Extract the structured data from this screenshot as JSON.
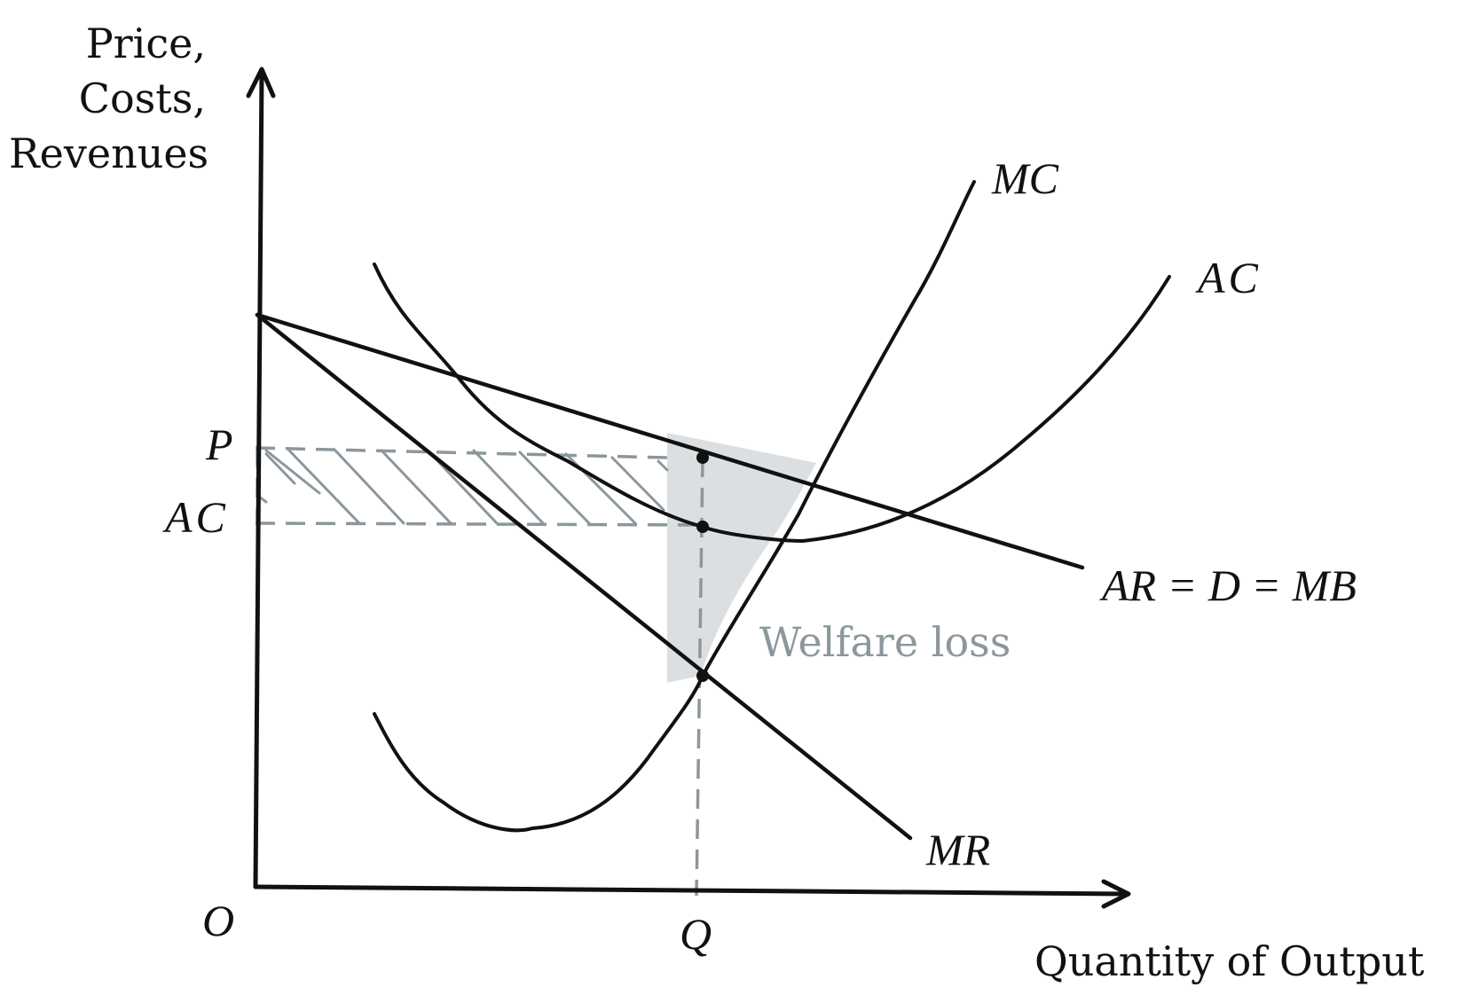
{
  "axes": {
    "y_title_lines": [
      "Price,",
      "Costs,",
      "Revenues"
    ],
    "x_title": "Quantity of Output",
    "origin_label": "O"
  },
  "labels": {
    "p": "P",
    "ac_level": "AC",
    "q": "Q",
    "mc": "MC",
    "ac_curve": "AC",
    "demand": "AR = D = MB",
    "mr": "MR",
    "welfare_loss": "Welfare loss"
  },
  "colors": {
    "ink": "#111111",
    "dashed": "#8c979c",
    "shade": "#dcdfe2",
    "annotation": "#8c979c"
  }
}
